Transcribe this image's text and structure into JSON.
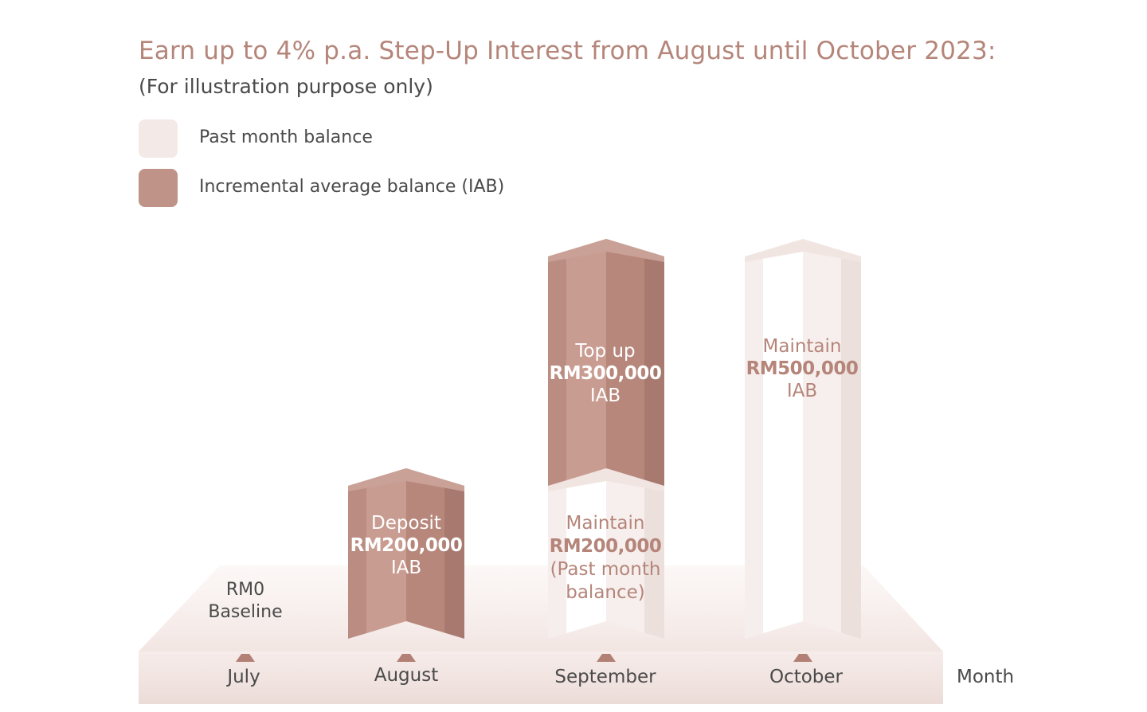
{
  "title": "Earn up to 4% p.a. Step-Up Interest from August until October 2023:",
  "subtitle": "(For illustration purpose only)",
  "colors": {
    "title": "#b5857a",
    "iab": "#b98a7f",
    "past_balance": "#f3e9e7",
    "text": "#4a4a4a"
  },
  "legend": [
    {
      "label": "Past month balance",
      "color": "#f3e9e7"
    },
    {
      "label": "Incremental average balance (IAB)",
      "color": "#c09388"
    }
  ],
  "chart_data": {
    "type": "bar",
    "stacked": true,
    "categories": [
      "July",
      "August",
      "September",
      "October"
    ],
    "series": [
      {
        "name": "Past month balance",
        "values": [
          0,
          0,
          200000,
          0
        ]
      },
      {
        "name": "Incremental average balance (IAB)",
        "values": [
          0,
          200000,
          300000,
          500000
        ]
      }
    ],
    "xlabel": "Month",
    "ylim": [
      0,
      500000
    ],
    "grid": false,
    "legend_position": "top-left"
  },
  "labels": {
    "baseline": {
      "amount": "RM0",
      "text": "Baseline"
    },
    "august": {
      "action": "Deposit",
      "amount": "RM200,000",
      "tag": "IAB"
    },
    "september_top": {
      "action": "Top up",
      "amount": "RM300,000",
      "tag": "IAB"
    },
    "september_bottom": {
      "action": "Maintain",
      "amount": "RM200,000",
      "tag1": "(Past month",
      "tag2": "balance)"
    },
    "october": {
      "action": "Maintain",
      "amount": "RM500,000",
      "tag": "IAB"
    }
  }
}
